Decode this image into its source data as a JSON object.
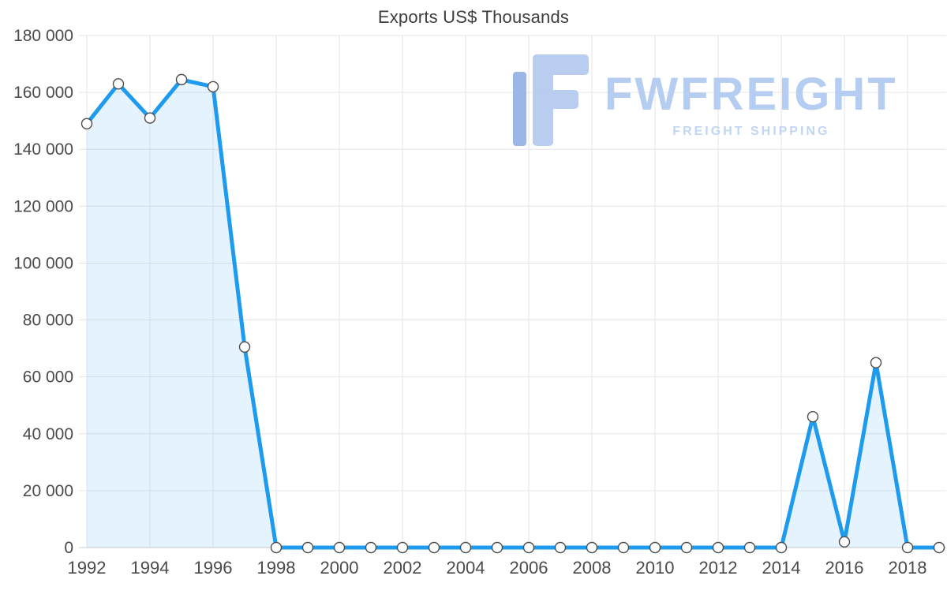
{
  "chart_data": {
    "type": "area",
    "title": "Exports US$ Thousands",
    "xlabel": "",
    "ylabel": "",
    "x": [
      1992,
      1993,
      1994,
      1995,
      1996,
      1997,
      1998,
      1999,
      2000,
      2001,
      2002,
      2003,
      2004,
      2005,
      2006,
      2007,
      2008,
      2009,
      2010,
      2011,
      2012,
      2013,
      2014,
      2015,
      2016,
      2017,
      2018,
      2019
    ],
    "values": [
      149000,
      163000,
      151000,
      164500,
      162000,
      70500,
      0,
      0,
      0,
      0,
      0,
      0,
      0,
      0,
      0,
      0,
      0,
      0,
      0,
      0,
      0,
      0,
      0,
      46000,
      2000,
      65000,
      0,
      0
    ],
    "ylim": [
      0,
      180000
    ],
    "ytick_step": 20000,
    "ytick_labels": [
      "0",
      "20 000",
      "40 000",
      "60 000",
      "80 000",
      "100 000",
      "120 000",
      "140 000",
      "160 000",
      "180 000"
    ],
    "xticks": [
      1992,
      1994,
      1996,
      1998,
      2000,
      2002,
      2004,
      2006,
      2008,
      2010,
      2012,
      2014,
      2016,
      2018
    ],
    "grid": true,
    "legend": false,
    "line_color": "#1e9bef",
    "fill_opacity": 0.12,
    "grid_color": "#e6e6e6",
    "axis_color": "#cfcfcf",
    "label_color": "#4b4b4b",
    "marker": {
      "fill": "#ffffff",
      "stroke": "#4d4d4d"
    }
  },
  "watermark": {
    "brand": "FWFREIGHT",
    "tagline": "FREIGHT SHIPPING",
    "brand_color": "#b3cbf2"
  }
}
